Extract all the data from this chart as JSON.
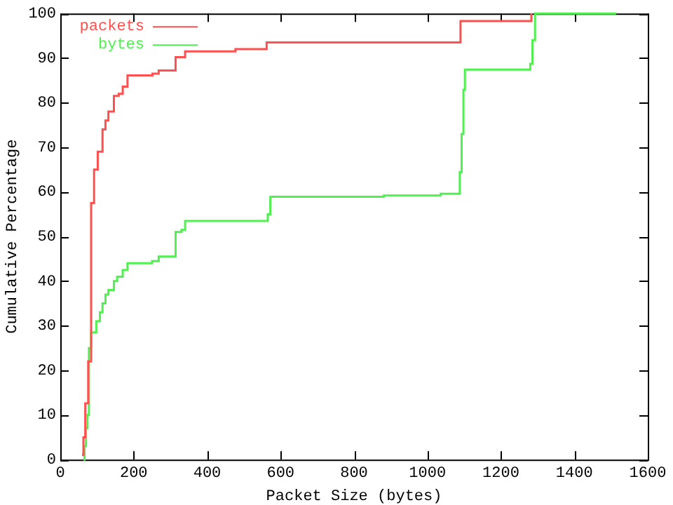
{
  "chart_data": {
    "type": "step",
    "xlabel": "Packet Size (bytes)",
    "ylabel": "Cumulative Percentage",
    "xlim": [
      0,
      1600
    ],
    "xticks": [
      0,
      200,
      400,
      600,
      800,
      1000,
      1200,
      1400,
      1600
    ],
    "ylim": [
      0,
      100
    ],
    "yticks": [
      0,
      10,
      20,
      30,
      40,
      50,
      60,
      70,
      80,
      90,
      100
    ],
    "grid": false,
    "legend": "top left",
    "marker": "none",
    "line_style": "solid",
    "series": [
      {
        "name": "packets",
        "color": "#ff5050",
        "x": [
          59,
          63,
          68,
          76,
          84,
          92,
          102,
          115,
          123,
          131,
          146,
          159,
          170,
          183,
          251,
          268,
          314,
          340,
          477,
          562,
          1090,
          1283
        ],
        "values": [
          1,
          5,
          12.6,
          22,
          57.5,
          65,
          69,
          74,
          76,
          78,
          81.5,
          82,
          83.6,
          86.1,
          86.5,
          87.2,
          90.2,
          91.5,
          92,
          93.5,
          98.3,
          100
        ]
      },
      {
        "name": "bytes",
        "color": "#50f050",
        "x": [
          63,
          66,
          70,
          74,
          78,
          84,
          98,
          108,
          115,
          123,
          131,
          146,
          155,
          170,
          183,
          250,
          268,
          314,
          330,
          340,
          560,
          565,
          572,
          881,
          1036,
          1088,
          1093,
          1098,
          1102,
          1280,
          1286,
          1293,
          1514
        ],
        "values": [
          0,
          3,
          7,
          10,
          25,
          28.5,
          31,
          33,
          35,
          37,
          38,
          40,
          41,
          42.5,
          44,
          44.5,
          45.5,
          51,
          51.5,
          53.5,
          53.5,
          55,
          58.9,
          59.2,
          59.6,
          64.4,
          73,
          82.9,
          87.4,
          88.7,
          94,
          100,
          100
        ]
      }
    ]
  }
}
